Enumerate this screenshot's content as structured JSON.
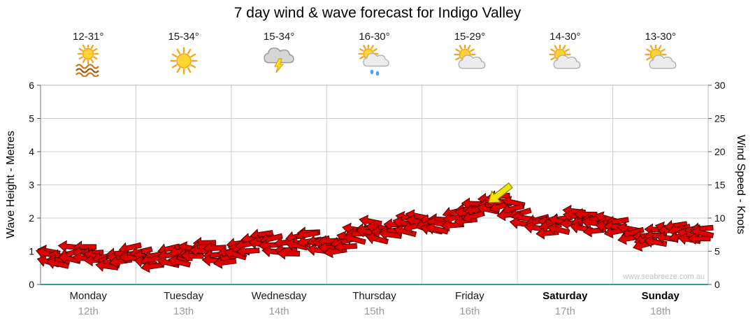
{
  "title": "7 day wind & wave forecast for Indigo Valley",
  "days": [
    {
      "name": "Monday",
      "date": "12th",
      "temp": "12-31°",
      "icon": "sun-waves",
      "bold": false
    },
    {
      "name": "Tuesday",
      "date": "13th",
      "temp": "15-34°",
      "icon": "sunny",
      "bold": false
    },
    {
      "name": "Wednesday",
      "date": "14th",
      "temp": "15-34°",
      "icon": "thunderstorm",
      "bold": false
    },
    {
      "name": "Thursday",
      "date": "15th",
      "temp": "16-30°",
      "icon": "sun-cloud-rain",
      "bold": false
    },
    {
      "name": "Friday",
      "date": "16th",
      "temp": "15-29°",
      "icon": "sun-cloud",
      "bold": false
    },
    {
      "name": "Saturday",
      "date": "17th",
      "temp": "14-30°",
      "icon": "sun-cloud",
      "bold": true
    },
    {
      "name": "Sunday",
      "date": "18th",
      "temp": "13-30°",
      "icon": "sun-cloud",
      "bold": true
    }
  ],
  "chart_data": {
    "type": "line",
    "style": "wind-arrow-band",
    "title": "7 day wind & wave forecast for Indigo Valley",
    "watermark": "www.seabreeze.com.au",
    "left_axis": {
      "label": "Wave Height - Metres",
      "min": 0,
      "max": 6,
      "ticks": [
        0,
        1,
        2,
        3,
        4,
        5,
        6
      ]
    },
    "right_axis": {
      "label": "Wind Speed - Knots",
      "min": 0,
      "max": 30,
      "ticks": [
        0,
        5,
        10,
        15,
        20,
        25,
        30
      ]
    },
    "categories": [
      "Monday",
      "Tuesday",
      "Wednesday",
      "Thursday",
      "Friday",
      "Saturday",
      "Sunday"
    ],
    "samples_per_day": 8,
    "grid": true,
    "series": [
      {
        "name": "Wind Speed (knots)",
        "values": [
          4.4,
          3.8,
          4.6,
          5.0,
          4.2,
          3.6,
          4.1,
          4.5,
          4.1,
          3.7,
          4.3,
          4.0,
          4.8,
          5.6,
          4.7,
          4.3,
          5.2,
          6.1,
          6.8,
          6.0,
          5.3,
          6.4,
          7.3,
          6.0,
          5.7,
          6.5,
          7.5,
          8.6,
          7.8,
          8.3,
          9.0,
          9.7,
          8.9,
          9.3,
          9.9,
          10.5,
          11.2,
          12.0,
          12.6,
          11.3,
          9.9,
          9.2,
          8.6,
          9.3,
          10.0,
          9.6,
          9.0,
          9.4,
          8.7,
          7.6,
          6.7,
          7.2,
          7.9,
          8.3,
          7.5,
          7.8
        ]
      }
    ],
    "highlight_arrow": {
      "index": 38,
      "knots": 13,
      "color": "#f2e30e",
      "direction": "up-left"
    },
    "colors": {
      "arrow": "#e10000",
      "arrow_outline": "#3c0000",
      "grid": "#cdcdcd",
      "border": "#b9b9b9",
      "baseline": "#2d9d9d",
      "tick_text": "#111111"
    }
  }
}
